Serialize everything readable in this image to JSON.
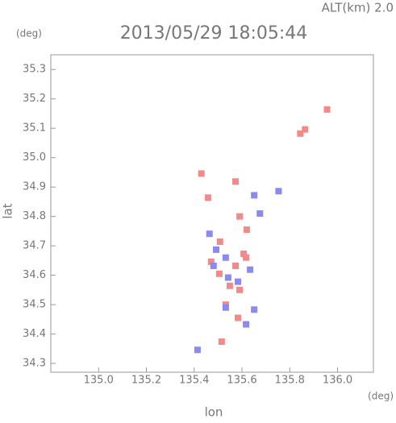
{
  "chart_data": {
    "type": "scatter",
    "title": "2013/05/29 18:05:44",
    "annotation": "ALT(km) 2.0",
    "y_unit": "(deg)",
    "x_unit": "(deg)",
    "x_label": "lon",
    "y_label": "lat",
    "xlim": [
      134.8,
      136.15
    ],
    "ylim": [
      34.27,
      35.35
    ],
    "xticks": [
      {
        "value": 135.0,
        "label": "135.0"
      },
      135.2,
      135.4,
      135.6,
      135.8,
      {
        "value": 136.0,
        "label": "136.0"
      }
    ],
    "yticks": [
      34.3,
      34.4,
      34.5,
      34.6,
      34.7,
      34.8,
      34.9,
      {
        "value": 35.0,
        "label": "35.0"
      },
      35.1,
      35.2,
      35.3
    ],
    "series": [
      {
        "color": "#f28a8a",
        "x": [
          135.864,
          135.844,
          135.956,
          135.43,
          135.573,
          135.458,
          135.59,
          135.62,
          135.508,
          135.607,
          135.573,
          135.505,
          135.549,
          135.59,
          135.532,
          135.583,
          135.515,
          135.617,
          135.471
        ],
        "y": [
          35.096,
          35.082,
          35.164,
          34.946,
          34.919,
          34.864,
          34.8,
          34.755,
          34.714,
          34.673,
          34.632,
          34.605,
          34.564,
          34.55,
          34.5,
          34.455,
          34.374,
          34.66,
          34.646
        ]
      },
      {
        "color": "#8a8af2",
        "x": [
          135.753,
          135.651,
          135.675,
          135.492,
          135.532,
          135.634,
          135.481,
          135.542,
          135.651,
          135.532,
          135.617,
          135.414,
          135.583,
          135.464
        ],
        "y": [
          34.886,
          34.872,
          34.81,
          34.687,
          34.66,
          34.619,
          34.632,
          34.592,
          34.483,
          34.49,
          34.433,
          34.346,
          34.578,
          34.741
        ]
      }
    ]
  }
}
